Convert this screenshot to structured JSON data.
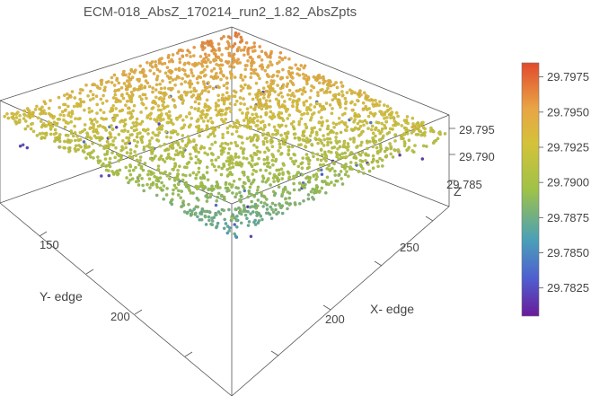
{
  "chart_data": {
    "type": "scatter",
    "title": "ECM-018_AbsZ_170214_run2_1.82_AbsZpts",
    "xlabel": "X- edge",
    "ylabel": "Y- edge",
    "zlabel": "Z",
    "x_ticks": [
      "200",
      "250"
    ],
    "y_ticks": [
      "150",
      "200"
    ],
    "z_ticks": [
      "29.785",
      "29.790",
      "29.795"
    ],
    "xlim": [
      160,
      290
    ],
    "ylim": [
      110,
      230
    ],
    "zlim": [
      29.781,
      29.798
    ],
    "colorbar": {
      "ticks": [
        "29.7975",
        "29.7950",
        "29.7925",
        "29.7900",
        "29.7875",
        "29.7850",
        "29.7825"
      ],
      "range": [
        29.7805,
        29.7985
      ],
      "colors": [
        "#6a1b9a",
        "#4e5fd0",
        "#4aa0b8",
        "#9fc247",
        "#d4c23a",
        "#e9a545",
        "#e14a2c"
      ]
    },
    "points_sample": [
      {
        "x": 165,
        "y": 115,
        "z": 29.7965
      },
      {
        "x": 175,
        "y": 120,
        "z": 29.796
      },
      {
        "x": 200,
        "y": 150,
        "z": 29.793
      },
      {
        "x": 230,
        "y": 170,
        "z": 29.7925
      },
      {
        "x": 250,
        "y": 200,
        "z": 29.7915
      },
      {
        "x": 280,
        "y": 120,
        "z": 29.794
      },
      {
        "x": 285,
        "y": 225,
        "z": 29.7905
      },
      {
        "x": 210,
        "y": 215,
        "z": 29.79
      },
      {
        "x": 190,
        "y": 190,
        "z": 29.783
      },
      {
        "x": 240,
        "y": 140,
        "z": 29.785
      }
    ]
  }
}
